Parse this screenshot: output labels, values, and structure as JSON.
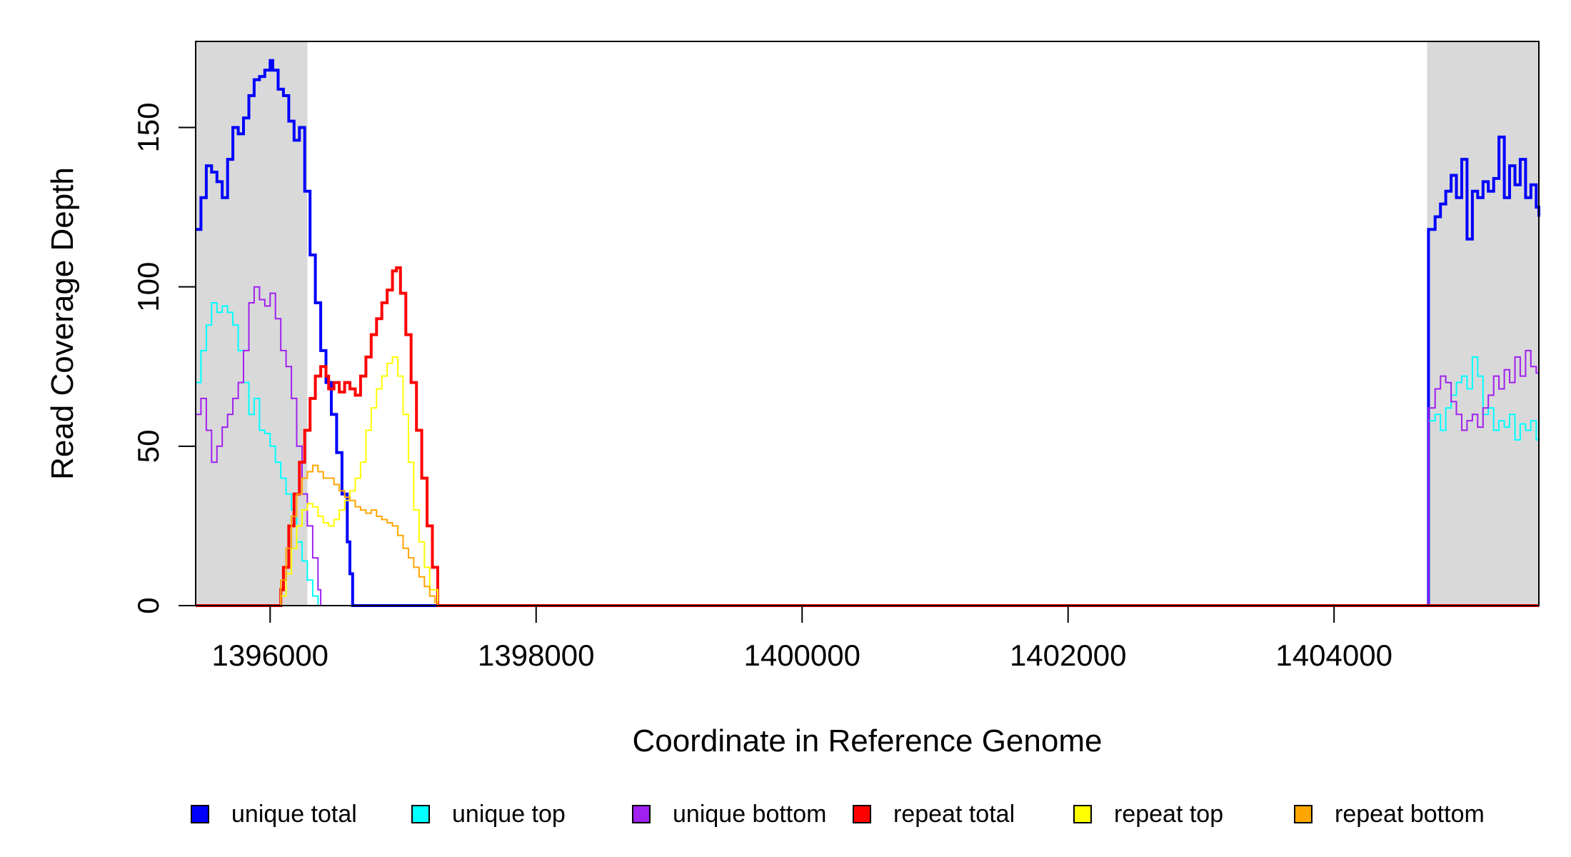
{
  "chart_data": {
    "type": "line",
    "xlabel": "Coordinate in Reference Genome",
    "ylabel": "Read Coverage Depth",
    "xlim": [
      1395440,
      1405540
    ],
    "ylim": [
      0,
      177
    ],
    "x_ticks": [
      1396000,
      1398000,
      1400000,
      1402000,
      1404000
    ],
    "x_tick_labels": [
      "1396000",
      "1398000",
      "1400000",
      "1402000",
      "1404000"
    ],
    "y_ticks": [
      0,
      50,
      100,
      150
    ],
    "y_tick_labels": [
      "0",
      "50",
      "100",
      "150"
    ],
    "grid": false,
    "legend_position": "bottom",
    "shaded_regions": [
      {
        "x": [
          1395440,
          1396280
        ],
        "color": "#d9d9d9"
      },
      {
        "x": [
          1404700,
          1405540
        ],
        "color": "#d9d9d9"
      }
    ],
    "series": [
      {
        "name": "unique total",
        "color": "#0000ff",
        "width": 4,
        "points": [
          [
            1395440,
            118
          ],
          [
            1395480,
            128
          ],
          [
            1395520,
            138
          ],
          [
            1395560,
            136
          ],
          [
            1395600,
            133
          ],
          [
            1395640,
            128
          ],
          [
            1395680,
            140
          ],
          [
            1395720,
            150
          ],
          [
            1395760,
            148
          ],
          [
            1395800,
            153
          ],
          [
            1395840,
            160
          ],
          [
            1395880,
            165
          ],
          [
            1395920,
            166
          ],
          [
            1395960,
            168
          ],
          [
            1396000,
            171
          ],
          [
            1396020,
            168
          ],
          [
            1396060,
            162
          ],
          [
            1396100,
            160
          ],
          [
            1396140,
            152
          ],
          [
            1396180,
            146
          ],
          [
            1396220,
            150
          ],
          [
            1396260,
            130
          ],
          [
            1396300,
            110
          ],
          [
            1396340,
            95
          ],
          [
            1396380,
            80
          ],
          [
            1396420,
            70
          ],
          [
            1396460,
            60
          ],
          [
            1396500,
            48
          ],
          [
            1396540,
            35
          ],
          [
            1396580,
            20
          ],
          [
            1396600,
            10
          ],
          [
            1396620,
            0
          ],
          [
            1404700,
            0
          ],
          [
            1404710,
            118
          ],
          [
            1404760,
            122
          ],
          [
            1404800,
            126
          ],
          [
            1404840,
            130
          ],
          [
            1404880,
            135
          ],
          [
            1404920,
            128
          ],
          [
            1404960,
            140
          ],
          [
            1405000,
            115
          ],
          [
            1405040,
            130
          ],
          [
            1405080,
            128
          ],
          [
            1405120,
            133
          ],
          [
            1405160,
            130
          ],
          [
            1405200,
            134
          ],
          [
            1405240,
            147
          ],
          [
            1405280,
            128
          ],
          [
            1405320,
            138
          ],
          [
            1405360,
            132
          ],
          [
            1405400,
            140
          ],
          [
            1405440,
            128
          ],
          [
            1405480,
            132
          ],
          [
            1405520,
            125
          ],
          [
            1405540,
            122
          ]
        ]
      },
      {
        "name": "unique top",
        "color": "#00ffff",
        "width": 2,
        "points": [
          [
            1395440,
            70
          ],
          [
            1395480,
            80
          ],
          [
            1395520,
            88
          ],
          [
            1395560,
            95
          ],
          [
            1395600,
            92
          ],
          [
            1395640,
            94
          ],
          [
            1395680,
            92
          ],
          [
            1395720,
            88
          ],
          [
            1395760,
            80
          ],
          [
            1395800,
            70
          ],
          [
            1395840,
            60
          ],
          [
            1395880,
            65
          ],
          [
            1395920,
            55
          ],
          [
            1395960,
            54
          ],
          [
            1396000,
            50
          ],
          [
            1396040,
            45
          ],
          [
            1396080,
            40
          ],
          [
            1396120,
            35
          ],
          [
            1396160,
            30
          ],
          [
            1396200,
            20
          ],
          [
            1396240,
            14
          ],
          [
            1396280,
            8
          ],
          [
            1396320,
            3
          ],
          [
            1396360,
            0
          ],
          [
            1404700,
            0
          ],
          [
            1404710,
            58
          ],
          [
            1404760,
            60
          ],
          [
            1404800,
            55
          ],
          [
            1404840,
            62
          ],
          [
            1404880,
            66
          ],
          [
            1404920,
            70
          ],
          [
            1404960,
            72
          ],
          [
            1405000,
            68
          ],
          [
            1405040,
            78
          ],
          [
            1405080,
            72
          ],
          [
            1405120,
            60
          ],
          [
            1405160,
            62
          ],
          [
            1405200,
            55
          ],
          [
            1405240,
            58
          ],
          [
            1405280,
            56
          ],
          [
            1405320,
            60
          ],
          [
            1405360,
            52
          ],
          [
            1405400,
            57
          ],
          [
            1405440,
            55
          ],
          [
            1405480,
            58
          ],
          [
            1405520,
            52
          ],
          [
            1405540,
            55
          ]
        ]
      },
      {
        "name": "unique bottom",
        "color": "#a020f0",
        "width": 2,
        "points": [
          [
            1395440,
            60
          ],
          [
            1395480,
            65
          ],
          [
            1395520,
            55
          ],
          [
            1395560,
            45
          ],
          [
            1395600,
            50
          ],
          [
            1395640,
            56
          ],
          [
            1395680,
            60
          ],
          [
            1395720,
            65
          ],
          [
            1395760,
            70
          ],
          [
            1395800,
            80
          ],
          [
            1395840,
            95
          ],
          [
            1395880,
            100
          ],
          [
            1395920,
            96
          ],
          [
            1395960,
            94
          ],
          [
            1396000,
            98
          ],
          [
            1396040,
            90
          ],
          [
            1396080,
            80
          ],
          [
            1396120,
            75
          ],
          [
            1396160,
            65
          ],
          [
            1396200,
            50
          ],
          [
            1396240,
            35
          ],
          [
            1396280,
            25
          ],
          [
            1396320,
            15
          ],
          [
            1396360,
            5
          ],
          [
            1396380,
            0
          ],
          [
            1404700,
            0
          ],
          [
            1404710,
            62
          ],
          [
            1404760,
            68
          ],
          [
            1404800,
            72
          ],
          [
            1404840,
            70
          ],
          [
            1404880,
            64
          ],
          [
            1404920,
            60
          ],
          [
            1404960,
            55
          ],
          [
            1405000,
            58
          ],
          [
            1405040,
            60
          ],
          [
            1405080,
            56
          ],
          [
            1405120,
            62
          ],
          [
            1405160,
            66
          ],
          [
            1405200,
            72
          ],
          [
            1405240,
            68
          ],
          [
            1405280,
            74
          ],
          [
            1405320,
            70
          ],
          [
            1405360,
            78
          ],
          [
            1405400,
            72
          ],
          [
            1405440,
            80
          ],
          [
            1405480,
            75
          ],
          [
            1405520,
            73
          ],
          [
            1405540,
            74
          ]
        ]
      },
      {
        "name": "repeat total",
        "color": "#ff0000",
        "width": 4,
        "points": [
          [
            1395440,
            0
          ],
          [
            1396060,
            0
          ],
          [
            1396080,
            5
          ],
          [
            1396100,
            12
          ],
          [
            1396140,
            25
          ],
          [
            1396180,
            35
          ],
          [
            1396220,
            45
          ],
          [
            1396260,
            55
          ],
          [
            1396300,
            65
          ],
          [
            1396340,
            72
          ],
          [
            1396380,
            75
          ],
          [
            1396420,
            72
          ],
          [
            1396440,
            68
          ],
          [
            1396480,
            70
          ],
          [
            1396520,
            67
          ],
          [
            1396560,
            70
          ],
          [
            1396600,
            68
          ],
          [
            1396640,
            66
          ],
          [
            1396680,
            72
          ],
          [
            1396720,
            78
          ],
          [
            1396760,
            85
          ],
          [
            1396800,
            90
          ],
          [
            1396840,
            95
          ],
          [
            1396880,
            99
          ],
          [
            1396920,
            105
          ],
          [
            1396950,
            106
          ],
          [
            1396980,
            98
          ],
          [
            1397020,
            85
          ],
          [
            1397060,
            70
          ],
          [
            1397100,
            55
          ],
          [
            1397140,
            40
          ],
          [
            1397180,
            25
          ],
          [
            1397220,
            12
          ],
          [
            1397260,
            0
          ],
          [
            1405540,
            0
          ]
        ]
      },
      {
        "name": "repeat top",
        "color": "#ffff00",
        "width": 2,
        "points": [
          [
            1395440,
            0
          ],
          [
            1396060,
            0
          ],
          [
            1396080,
            3
          ],
          [
            1396120,
            10
          ],
          [
            1396160,
            18
          ],
          [
            1396200,
            25
          ],
          [
            1396240,
            30
          ],
          [
            1396280,
            32
          ],
          [
            1396320,
            31
          ],
          [
            1396360,
            28
          ],
          [
            1396400,
            26
          ],
          [
            1396440,
            25
          ],
          [
            1396480,
            27
          ],
          [
            1396520,
            30
          ],
          [
            1396560,
            33
          ],
          [
            1396600,
            36
          ],
          [
            1396640,
            40
          ],
          [
            1396680,
            45
          ],
          [
            1396720,
            55
          ],
          [
            1396760,
            62
          ],
          [
            1396800,
            68
          ],
          [
            1396840,
            72
          ],
          [
            1396880,
            76
          ],
          [
            1396920,
            78
          ],
          [
            1396960,
            72
          ],
          [
            1397000,
            60
          ],
          [
            1397040,
            45
          ],
          [
            1397080,
            30
          ],
          [
            1397120,
            20
          ],
          [
            1397160,
            12
          ],
          [
            1397200,
            5
          ],
          [
            1397260,
            0
          ],
          [
            1405540,
            0
          ]
        ]
      },
      {
        "name": "repeat bottom",
        "color": "#ffa500",
        "width": 2,
        "points": [
          [
            1395440,
            0
          ],
          [
            1396060,
            0
          ],
          [
            1396080,
            8
          ],
          [
            1396120,
            18
          ],
          [
            1396160,
            28
          ],
          [
            1396200,
            35
          ],
          [
            1396240,
            40
          ],
          [
            1396280,
            42
          ],
          [
            1396320,
            44
          ],
          [
            1396360,
            42
          ],
          [
            1396400,
            40
          ],
          [
            1396440,
            40
          ],
          [
            1396480,
            38
          ],
          [
            1396520,
            36
          ],
          [
            1396560,
            34
          ],
          [
            1396600,
            33
          ],
          [
            1396640,
            31
          ],
          [
            1396680,
            30
          ],
          [
            1396720,
            29
          ],
          [
            1396760,
            30
          ],
          [
            1396800,
            28
          ],
          [
            1396840,
            27
          ],
          [
            1396880,
            26
          ],
          [
            1396920,
            25
          ],
          [
            1396960,
            22
          ],
          [
            1397000,
            18
          ],
          [
            1397040,
            15
          ],
          [
            1397080,
            12
          ],
          [
            1397120,
            9
          ],
          [
            1397160,
            6
          ],
          [
            1397200,
            3
          ],
          [
            1397240,
            1
          ],
          [
            1397260,
            0
          ],
          [
            1405540,
            0
          ]
        ]
      }
    ]
  }
}
